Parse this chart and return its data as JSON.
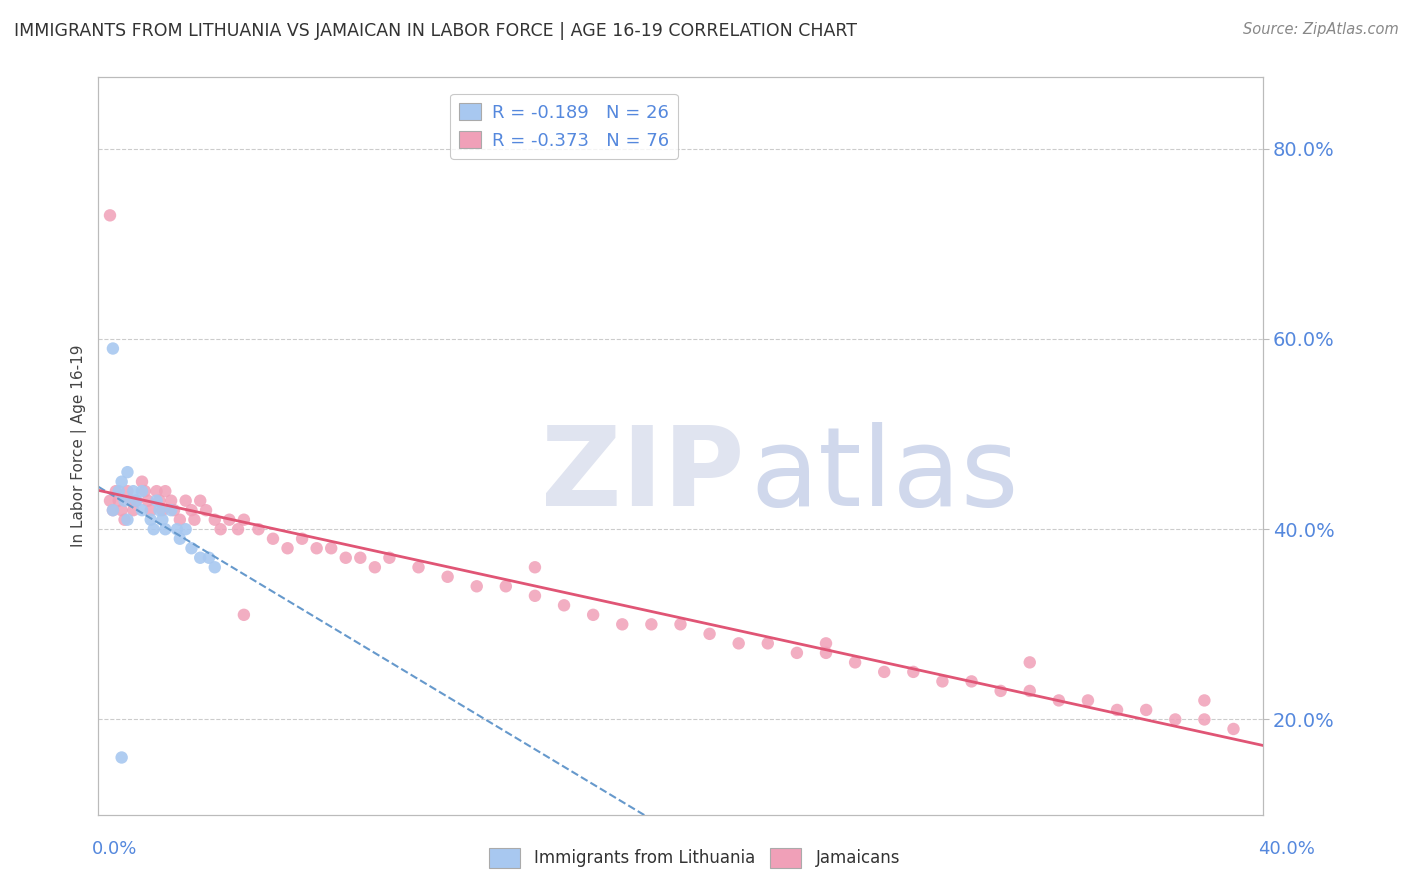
{
  "title": "IMMIGRANTS FROM LITHUANIA VS JAMAICAN IN LABOR FORCE | AGE 16-19 CORRELATION CHART",
  "source": "Source: ZipAtlas.com",
  "ylabel_label": "In Labor Force | Age 16-19",
  "right_ytick_vals": [
    0.8,
    0.6,
    0.4,
    0.2
  ],
  "xlim": [
    0.0,
    0.4
  ],
  "ylim": [
    0.1,
    0.875
  ],
  "legend_r1": "R = -0.189   N = 26",
  "legend_r2": "R = -0.373   N = 76",
  "color_lithuania": "#a8c8f0",
  "color_jamaican": "#f0a0b8",
  "trend_color_lithuania": "#6699cc",
  "trend_color_jamaican": "#e05575",
  "background_color": "#ffffff",
  "grid_color": "#cccccc",
  "title_color": "#333333",
  "axis_label_color": "#5588dd",
  "lit_x": [
    0.005,
    0.007,
    0.008,
    0.009,
    0.01,
    0.01,
    0.012,
    0.013,
    0.015,
    0.015,
    0.018,
    0.019,
    0.02,
    0.021,
    0.022,
    0.023,
    0.025,
    0.027,
    0.028,
    0.03,
    0.032,
    0.035,
    0.038,
    0.04,
    0.005,
    0.008
  ],
  "lit_y": [
    0.42,
    0.44,
    0.45,
    0.43,
    0.46,
    0.41,
    0.44,
    0.43,
    0.42,
    0.44,
    0.41,
    0.4,
    0.43,
    0.42,
    0.41,
    0.4,
    0.42,
    0.4,
    0.39,
    0.4,
    0.38,
    0.37,
    0.37,
    0.36,
    0.59,
    0.16
  ],
  "jam_x": [
    0.004,
    0.005,
    0.006,
    0.007,
    0.008,
    0.009,
    0.01,
    0.011,
    0.012,
    0.013,
    0.015,
    0.016,
    0.017,
    0.018,
    0.02,
    0.021,
    0.022,
    0.023,
    0.025,
    0.026,
    0.028,
    0.03,
    0.032,
    0.033,
    0.035,
    0.037,
    0.04,
    0.042,
    0.045,
    0.048,
    0.05,
    0.055,
    0.06,
    0.065,
    0.07,
    0.075,
    0.08,
    0.085,
    0.09,
    0.095,
    0.1,
    0.11,
    0.12,
    0.13,
    0.14,
    0.15,
    0.16,
    0.17,
    0.18,
    0.19,
    0.2,
    0.21,
    0.22,
    0.23,
    0.24,
    0.25,
    0.26,
    0.27,
    0.28,
    0.29,
    0.3,
    0.31,
    0.32,
    0.33,
    0.34,
    0.35,
    0.36,
    0.37,
    0.38,
    0.39,
    0.004,
    0.05,
    0.15,
    0.25,
    0.32,
    0.38
  ],
  "jam_y": [
    0.43,
    0.42,
    0.44,
    0.43,
    0.42,
    0.41,
    0.44,
    0.43,
    0.42,
    0.43,
    0.45,
    0.44,
    0.43,
    0.42,
    0.44,
    0.43,
    0.42,
    0.44,
    0.43,
    0.42,
    0.41,
    0.43,
    0.42,
    0.41,
    0.43,
    0.42,
    0.41,
    0.4,
    0.41,
    0.4,
    0.41,
    0.4,
    0.39,
    0.38,
    0.39,
    0.38,
    0.38,
    0.37,
    0.37,
    0.36,
    0.37,
    0.36,
    0.35,
    0.34,
    0.34,
    0.33,
    0.32,
    0.31,
    0.3,
    0.3,
    0.3,
    0.29,
    0.28,
    0.28,
    0.27,
    0.27,
    0.26,
    0.25,
    0.25,
    0.24,
    0.24,
    0.23,
    0.23,
    0.22,
    0.22,
    0.21,
    0.21,
    0.2,
    0.2,
    0.19,
    0.73,
    0.31,
    0.36,
    0.28,
    0.26,
    0.22
  ]
}
